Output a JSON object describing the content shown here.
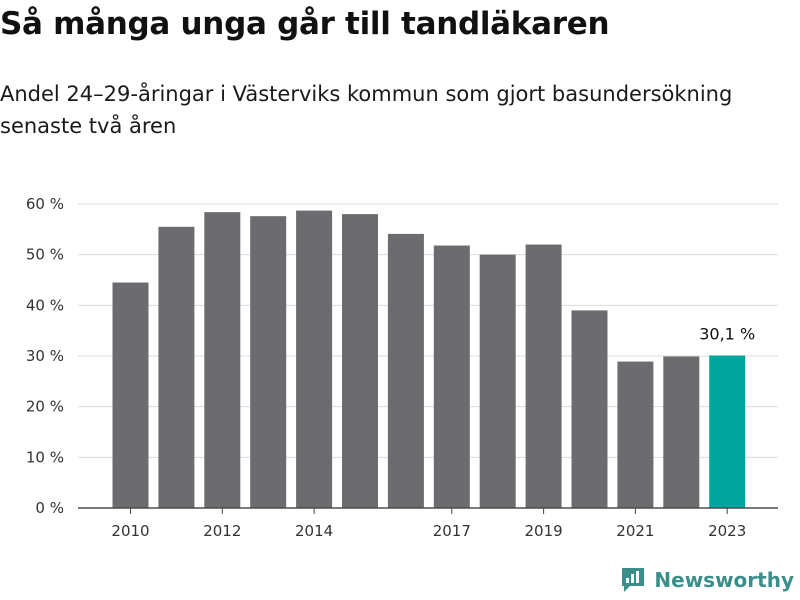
{
  "header": {
    "title": "Så många unga går till tandläkaren",
    "subtitle": "Andel 24–29-åringar i Västerviks kommun som gjort basundersökning senaste två åren"
  },
  "branding": {
    "name": "Newsworthy"
  },
  "colors": {
    "bar": "#6b6b70",
    "highlight": "#00a69c",
    "grid": "#dcdcdc",
    "logo": "#3b8f8a"
  },
  "chart_data": {
    "type": "bar",
    "categories": [
      "2010",
      "2011",
      "2012",
      "2013",
      "2014",
      "2015",
      "2016",
      "2017",
      "2018",
      "2019",
      "2020",
      "2021",
      "2022",
      "2023"
    ],
    "values": [
      44.5,
      55.5,
      58.4,
      57.6,
      58.7,
      58.0,
      54.1,
      51.8,
      50.0,
      52.0,
      39.0,
      28.9,
      29.9,
      30.1
    ],
    "highlight_index": 13,
    "x_tick_labels": [
      "2010",
      "2012",
      "2014",
      "2017",
      "2019",
      "2021",
      "2023"
    ],
    "y_tick_labels": [
      "0 %",
      "10 %",
      "20 %",
      "30 %",
      "40 %",
      "50 %",
      "60 %"
    ],
    "ylim": [
      0,
      60
    ],
    "y_ticks": [
      0,
      10,
      20,
      30,
      40,
      50,
      60
    ],
    "annotation": "30,1 %",
    "grid": true
  }
}
